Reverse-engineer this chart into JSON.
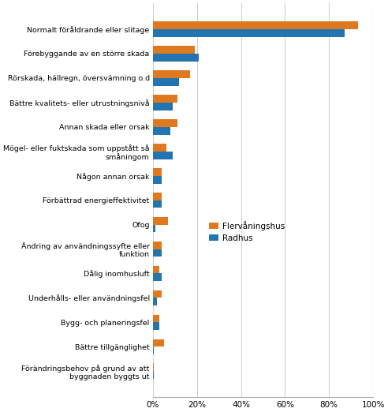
{
  "categories": [
    "Normalt föråldrande eller slitage",
    "Förebyggande av en större skada",
    "Rörskada, hällregn, översvämning o.d",
    "Bättre kvalitets- eller utrustningsnivå",
    "Annan skada eller orsak",
    "Mögel- eller fuktskada som uppstått så\nsmåningom",
    "Någon annan orsak",
    "Förbättrad energieffektivitet",
    "Ofog",
    "Ändring av användningssyfte eller\nfunktion",
    "Dålig inomhusluft",
    "Underhålls- eller användningsfel",
    "Bygg- och planeringsfel",
    "Bättre tillgänglighet",
    "Förändringsbehov på grund av att\nbyggnaden byggts ut"
  ],
  "flervåningshus": [
    93,
    19,
    17,
    11,
    11,
    6,
    4,
    4,
    7,
    4,
    3,
    4,
    3,
    5,
    0.5
  ],
  "radhus": [
    87,
    21,
    12,
    9,
    8,
    9,
    4,
    4,
    1,
    4,
    4,
    2,
    3,
    0.5,
    0.5
  ],
  "color_flervåningshus": "#E07820",
  "color_radhus": "#2275B0",
  "legend_flervåningshus": "Flervåningshus",
  "legend_radhus": "Radhus",
  "xlim": [
    0,
    100
  ],
  "xticks": [
    0,
    20,
    40,
    60,
    80,
    100
  ],
  "xticklabels": [
    "0%",
    "20%",
    "40%",
    "60%",
    "80%",
    "100%"
  ],
  "grid_color": "#d0d0d0",
  "background_color": "#ffffff",
  "bar_height": 0.32,
  "label_fontsize": 6.8,
  "tick_fontsize": 7.5
}
